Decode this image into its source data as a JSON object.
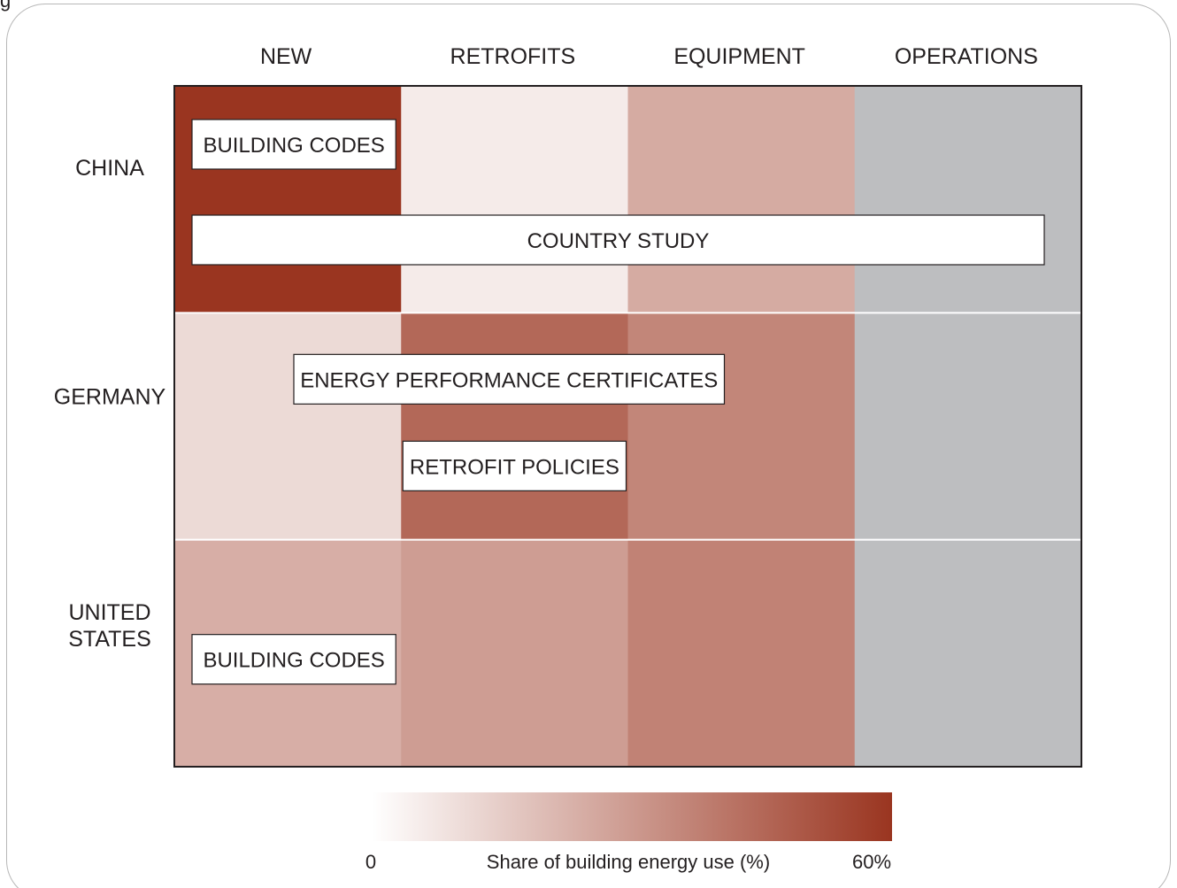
{
  "corner_text": "g",
  "chart_data": {
    "type": "heatmap",
    "title": "",
    "columns": [
      "NEW",
      "RETROFITS",
      "EQUIPMENT",
      "OPERATIONS"
    ],
    "rows": [
      {
        "label_lines": [
          "CHINA"
        ]
      },
      {
        "label_lines": [
          "GERMANY"
        ]
      },
      {
        "label_lines": [
          "UNITED",
          "STATES"
        ]
      }
    ],
    "values": [
      [
        60,
        6,
        25,
        null
      ],
      [
        11,
        45,
        36,
        null
      ],
      [
        24,
        29,
        37,
        null
      ]
    ],
    "null_color": "#bdbec0",
    "colorscale": {
      "min": 0,
      "max": 60,
      "low_color": "#ffffff",
      "high_color": "#9a3520",
      "min_label": "0",
      "max_label": "60%",
      "label": "Share of building energy use (%)"
    },
    "annotations": [
      {
        "text": "BUILDING CODES",
        "row": 0,
        "col_start": 0,
        "col_end": 0
      },
      {
        "text": "COUNTRY STUDY",
        "row": 0,
        "col_start": 0,
        "col_end": 3
      },
      {
        "text": "ENERGY PERFORMANCE CERTIFICATES",
        "row": 1,
        "col_start": 0,
        "col_end": 2
      },
      {
        "text": "RETROFIT POLICIES",
        "row": 1,
        "col_start": 1,
        "col_end": 1
      },
      {
        "text": "BUILDING CODES",
        "row": 2,
        "col_start": 0,
        "col_end": 0
      }
    ]
  }
}
